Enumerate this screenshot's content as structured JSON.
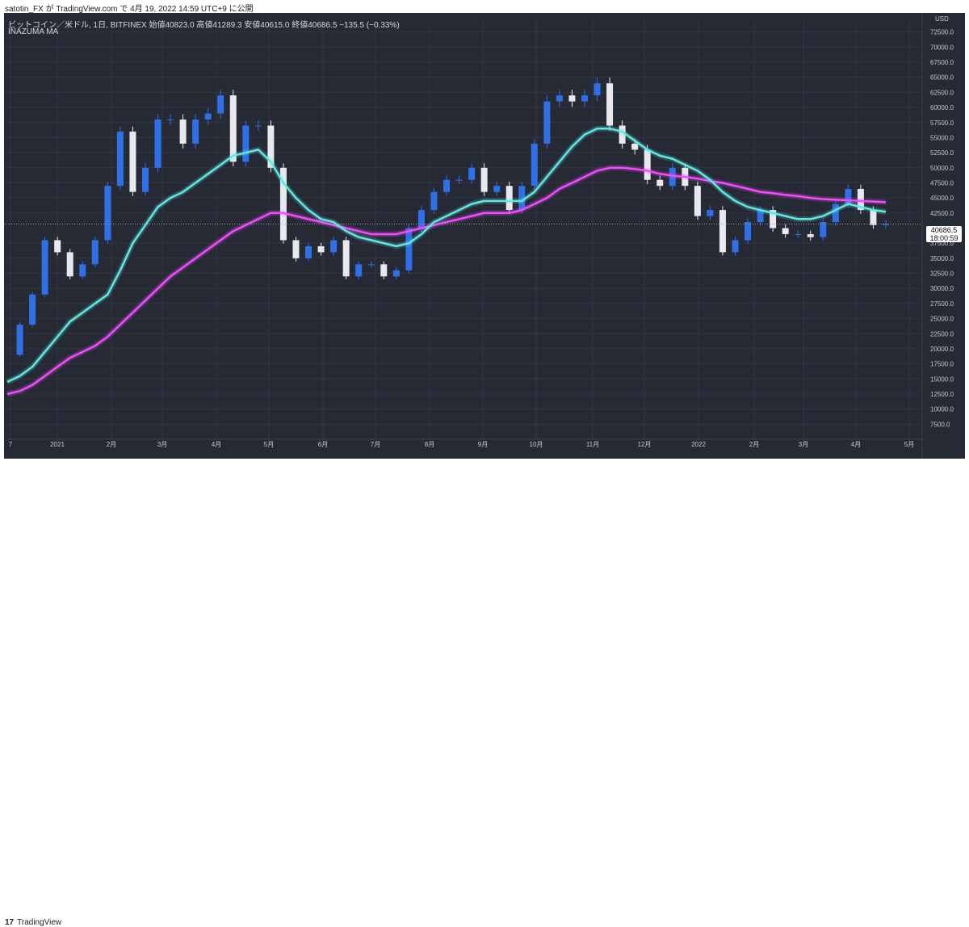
{
  "header": {
    "attribution": "satotin_FX が TradingView.com で 4月 19, 2022 14:59 UTC+9 に公開"
  },
  "chart_header": {
    "symbol_line": "ビットコイン／米ドル, 1日, BITFINEX  始値40823.0  高値41289.3  安値40615.0  終値40686.5  −135.5 (−0.33%)",
    "indicator": "INAZUMA MA",
    "currency": "USD"
  },
  "last_price": {
    "value": "40686.5",
    "countdown": "18:00:59"
  },
  "footer": {
    "brand_logo": "17",
    "brand_name": "TradingView"
  },
  "colors": {
    "background": "#262a34",
    "candle_up": "#2f6fe8",
    "candle_down": "#e8e8ee",
    "fast_ma": "#5fe9e2",
    "slow_ma": "#f34bff",
    "grid": "#323644",
    "axis_text": "#c5c7ce"
  },
  "chart_data": {
    "type": "line",
    "title": "ビットコイン／米ドル, 1日, BITFINEX",
    "xlabel": "",
    "ylabel": "USD",
    "ylim": [
      5000,
      75000
    ],
    "grid": true,
    "x_ticks": [
      "7",
      "2021",
      "2月",
      "3月",
      "4月",
      "5月",
      "6月",
      "7月",
      "8月",
      "9月",
      "10月",
      "11月",
      "12月",
      "2022",
      "2月",
      "3月",
      "4月",
      "5月"
    ],
    "y_ticks": [
      7500,
      10000,
      12500,
      15000,
      17500,
      20000,
      22500,
      25000,
      27500,
      30000,
      32500,
      35000,
      37500,
      42500,
      45000,
      47500,
      50000,
      52500,
      55000,
      57500,
      60000,
      62500,
      65000,
      67500,
      70000,
      72500
    ],
    "x": [
      "2020-12-18",
      "2020-12-25",
      "2021-01-01",
      "2021-01-08",
      "2021-01-15",
      "2021-01-22",
      "2021-01-29",
      "2021-02-05",
      "2021-02-12",
      "2021-02-19",
      "2021-02-26",
      "2021-03-05",
      "2021-03-12",
      "2021-03-19",
      "2021-03-26",
      "2021-04-02",
      "2021-04-09",
      "2021-04-16",
      "2021-04-23",
      "2021-04-30",
      "2021-05-07",
      "2021-05-14",
      "2021-05-21",
      "2021-05-28",
      "2021-06-04",
      "2021-06-11",
      "2021-06-18",
      "2021-06-25",
      "2021-07-02",
      "2021-07-09",
      "2021-07-16",
      "2021-07-23",
      "2021-07-30",
      "2021-08-06",
      "2021-08-13",
      "2021-08-20",
      "2021-08-27",
      "2021-09-03",
      "2021-09-10",
      "2021-09-17",
      "2021-09-24",
      "2021-10-01",
      "2021-10-08",
      "2021-10-15",
      "2021-10-22",
      "2021-10-29",
      "2021-11-05",
      "2021-11-12",
      "2021-11-19",
      "2021-11-26",
      "2021-12-03",
      "2021-12-10",
      "2021-12-17",
      "2021-12-24",
      "2021-12-31",
      "2022-01-07",
      "2022-01-14",
      "2022-01-21",
      "2022-01-28",
      "2022-02-04",
      "2022-02-11",
      "2022-02-18",
      "2022-02-25",
      "2022-03-04",
      "2022-03-11",
      "2022-03-18",
      "2022-03-25",
      "2022-04-01",
      "2022-04-08",
      "2022-04-15",
      "2022-04-19"
    ],
    "series": [
      {
        "values": [
          19000,
          24000,
          29000,
          38000,
          36000,
          32000,
          34000,
          38000,
          47000,
          56000,
          46000,
          50000,
          58000,
          58000,
          54000,
          58000,
          59000,
          62000,
          51000,
          57000,
          57000,
          50000,
          38000,
          35000,
          37000,
          36000,
          38000,
          32000,
          34000,
          34000,
          32000,
          33000,
          40000,
          43000,
          46000,
          48000,
          48000,
          50000,
          46000,
          47000,
          43000,
          47000,
          54000,
          61000,
          62000,
          61000,
          62000,
          64000,
          57000,
          54000,
          53000,
          48000,
          47000,
          50000,
          47000,
          42000,
          43000,
          36000,
          38000,
          41000,
          43000,
          40000,
          39000,
          39000,
          38500,
          41000,
          44000,
          46500,
          43000,
          40500,
          40686.5
        ]
      },
      {
        "values": [
          14500,
          15500,
          17000,
          19500,
          22000,
          24500,
          26000,
          27500,
          29000,
          33000,
          37500,
          40500,
          43500,
          45000,
          46000,
          47500,
          49000,
          50500,
          52000,
          52500,
          53000,
          51000,
          47500,
          45000,
          43000,
          41500,
          41000,
          39500,
          38500,
          38000,
          37500,
          37000,
          37500,
          39000,
          41000,
          42000,
          43000,
          44000,
          44500,
          44500,
          44500,
          44500,
          46000,
          48500,
          51000,
          53500,
          55500,
          56500,
          56500,
          56000,
          54500,
          53000,
          52000,
          51500,
          50500,
          49500,
          48000,
          46000,
          44500,
          43500,
          43000,
          42500,
          42000,
          41500,
          41500,
          42000,
          43000,
          44000,
          43500,
          43000,
          42700
        ]
      },
      {
        "values": [
          12500,
          13000,
          14000,
          15500,
          17000,
          18500,
          19500,
          20500,
          22000,
          24000,
          26000,
          28000,
          30000,
          32000,
          33500,
          35000,
          36500,
          38000,
          39500,
          40500,
          41500,
          42500,
          42500,
          42000,
          41500,
          41000,
          40500,
          40000,
          39500,
          39000,
          39000,
          39000,
          39500,
          40000,
          40500,
          41000,
          41500,
          42000,
          42500,
          42500,
          42500,
          43000,
          44000,
          45000,
          46500,
          47500,
          48500,
          49500,
          50000,
          50000,
          49800,
          49500,
          49000,
          48700,
          48500,
          48200,
          47800,
          47500,
          47000,
          46500,
          46000,
          45800,
          45500,
          45300,
          45000,
          44800,
          44700,
          44600,
          44500,
          44400,
          44300
        ]
      }
    ]
  }
}
